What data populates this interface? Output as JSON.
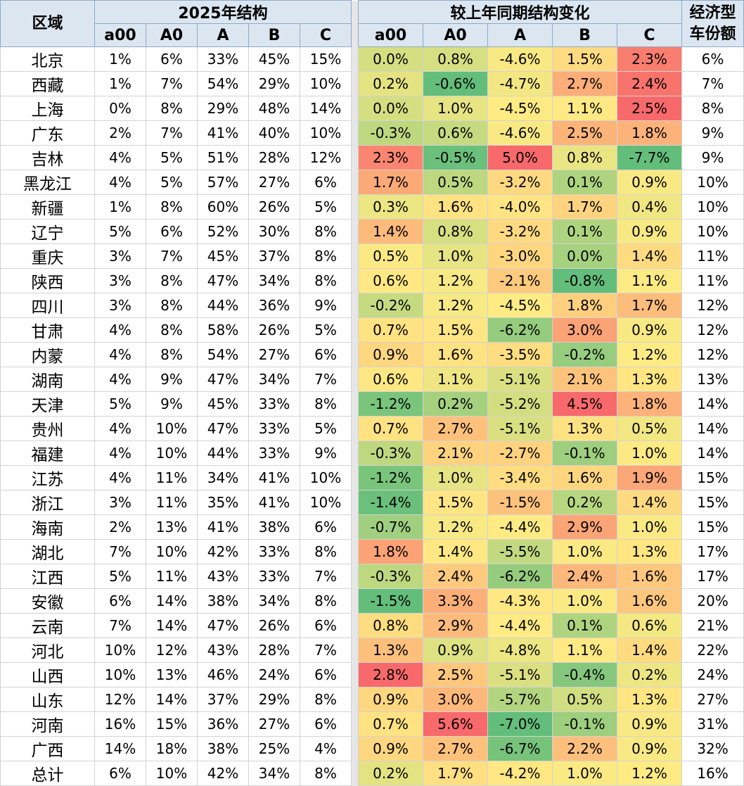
{
  "headers": {
    "region": "区域",
    "structure_group": "2025年结构",
    "change_group": "较上年同期结构变化",
    "economy_line1": "经济型",
    "economy_line2": "车份额",
    "segments": [
      "a00",
      "A0",
      "A",
      "B",
      "C"
    ]
  },
  "rows": [
    {
      "region": "北京",
      "structure": [
        "1%",
        "6%",
        "33%",
        "45%",
        "15%"
      ],
      "change": [
        "0.0%",
        "0.8%",
        "-4.6%",
        "1.5%",
        "2.3%"
      ],
      "economy": "6%"
    },
    {
      "region": "西藏",
      "structure": [
        "1%",
        "7%",
        "54%",
        "29%",
        "10%"
      ],
      "change": [
        "0.2%",
        "-0.6%",
        "-4.7%",
        "2.7%",
        "2.4%"
      ],
      "economy": "7%"
    },
    {
      "region": "上海",
      "structure": [
        "0%",
        "8%",
        "29%",
        "48%",
        "14%"
      ],
      "change": [
        "0.0%",
        "1.0%",
        "-4.5%",
        "1.1%",
        "2.5%"
      ],
      "economy": "8%"
    },
    {
      "region": "广东",
      "structure": [
        "2%",
        "7%",
        "41%",
        "40%",
        "10%"
      ],
      "change": [
        "-0.3%",
        "0.6%",
        "-4.6%",
        "2.5%",
        "1.8%"
      ],
      "economy": "9%"
    },
    {
      "region": "吉林",
      "structure": [
        "4%",
        "5%",
        "51%",
        "28%",
        "12%"
      ],
      "change": [
        "2.3%",
        "-0.5%",
        "5.0%",
        "0.8%",
        "-7.7%"
      ],
      "economy": "9%"
    },
    {
      "region": "黑龙江",
      "structure": [
        "4%",
        "5%",
        "57%",
        "27%",
        "6%"
      ],
      "change": [
        "1.7%",
        "0.5%",
        "-3.2%",
        "0.1%",
        "0.9%"
      ],
      "economy": "10%"
    },
    {
      "region": "新疆",
      "structure": [
        "1%",
        "8%",
        "60%",
        "26%",
        "5%"
      ],
      "change": [
        "0.3%",
        "1.6%",
        "-4.0%",
        "1.7%",
        "0.4%"
      ],
      "economy": "10%"
    },
    {
      "region": "辽宁",
      "structure": [
        "5%",
        "6%",
        "52%",
        "30%",
        "8%"
      ],
      "change": [
        "1.4%",
        "0.8%",
        "-3.2%",
        "0.1%",
        "0.9%"
      ],
      "economy": "10%"
    },
    {
      "region": "重庆",
      "structure": [
        "3%",
        "7%",
        "45%",
        "37%",
        "8%"
      ],
      "change": [
        "0.5%",
        "1.0%",
        "-3.0%",
        "0.0%",
        "1.4%"
      ],
      "economy": "11%"
    },
    {
      "region": "陕西",
      "structure": [
        "3%",
        "8%",
        "47%",
        "34%",
        "8%"
      ],
      "change": [
        "0.6%",
        "1.2%",
        "-2.1%",
        "-0.8%",
        "1.1%"
      ],
      "economy": "11%"
    },
    {
      "region": "四川",
      "structure": [
        "3%",
        "8%",
        "44%",
        "36%",
        "9%"
      ],
      "change": [
        "-0.2%",
        "1.2%",
        "-4.5%",
        "1.8%",
        "1.7%"
      ],
      "economy": "12%"
    },
    {
      "region": "甘肃",
      "structure": [
        "4%",
        "8%",
        "58%",
        "26%",
        "5%"
      ],
      "change": [
        "0.7%",
        "1.5%",
        "-6.2%",
        "3.0%",
        "0.9%"
      ],
      "economy": "12%"
    },
    {
      "region": "内蒙",
      "structure": [
        "4%",
        "8%",
        "54%",
        "27%",
        "6%"
      ],
      "change": [
        "0.9%",
        "1.6%",
        "-3.5%",
        "-0.2%",
        "1.2%"
      ],
      "economy": "12%"
    },
    {
      "region": "湖南",
      "structure": [
        "4%",
        "9%",
        "47%",
        "34%",
        "7%"
      ],
      "change": [
        "0.6%",
        "1.1%",
        "-5.1%",
        "2.1%",
        "1.3%"
      ],
      "economy": "13%"
    },
    {
      "region": "天津",
      "structure": [
        "5%",
        "9%",
        "45%",
        "33%",
        "8%"
      ],
      "change": [
        "-1.2%",
        "0.2%",
        "-5.2%",
        "4.5%",
        "1.8%"
      ],
      "economy": "14%"
    },
    {
      "region": "贵州",
      "structure": [
        "4%",
        "10%",
        "47%",
        "33%",
        "5%"
      ],
      "change": [
        "0.7%",
        "2.7%",
        "-5.1%",
        "1.3%",
        "0.5%"
      ],
      "economy": "14%"
    },
    {
      "region": "福建",
      "structure": [
        "4%",
        "10%",
        "44%",
        "33%",
        "9%"
      ],
      "change": [
        "-0.3%",
        "2.1%",
        "-2.7%",
        "-0.1%",
        "1.0%"
      ],
      "economy": "14%"
    },
    {
      "region": "江苏",
      "structure": [
        "4%",
        "11%",
        "34%",
        "41%",
        "10%"
      ],
      "change": [
        "-1.2%",
        "1.0%",
        "-3.4%",
        "1.6%",
        "1.9%"
      ],
      "economy": "15%"
    },
    {
      "region": "浙江",
      "structure": [
        "3%",
        "11%",
        "35%",
        "41%",
        "10%"
      ],
      "change": [
        "-1.4%",
        "1.5%",
        "-1.5%",
        "0.2%",
        "1.4%"
      ],
      "economy": "15%"
    },
    {
      "region": "海南",
      "structure": [
        "2%",
        "13%",
        "41%",
        "38%",
        "6%"
      ],
      "change": [
        "-0.7%",
        "1.2%",
        "-4.4%",
        "2.9%",
        "1.0%"
      ],
      "economy": "15%"
    },
    {
      "region": "湖北",
      "structure": [
        "7%",
        "10%",
        "42%",
        "33%",
        "8%"
      ],
      "change": [
        "1.8%",
        "1.4%",
        "-5.5%",
        "1.0%",
        "1.3%"
      ],
      "economy": "17%"
    },
    {
      "region": "江西",
      "structure": [
        "5%",
        "11%",
        "43%",
        "33%",
        "7%"
      ],
      "change": [
        "-0.3%",
        "2.4%",
        "-6.2%",
        "2.4%",
        "1.6%"
      ],
      "economy": "17%"
    },
    {
      "region": "安徽",
      "structure": [
        "6%",
        "14%",
        "38%",
        "34%",
        "8%"
      ],
      "change": [
        "-1.5%",
        "3.3%",
        "-4.3%",
        "1.0%",
        "1.6%"
      ],
      "economy": "20%"
    },
    {
      "region": "云南",
      "structure": [
        "7%",
        "14%",
        "47%",
        "26%",
        "6%"
      ],
      "change": [
        "0.8%",
        "2.9%",
        "-4.4%",
        "0.1%",
        "0.6%"
      ],
      "economy": "21%"
    },
    {
      "region": "河北",
      "structure": [
        "10%",
        "12%",
        "43%",
        "28%",
        "7%"
      ],
      "change": [
        "1.3%",
        "0.9%",
        "-4.8%",
        "1.1%",
        "1.4%"
      ],
      "economy": "22%"
    },
    {
      "region": "山西",
      "structure": [
        "10%",
        "13%",
        "46%",
        "24%",
        "6%"
      ],
      "change": [
        "2.8%",
        "2.5%",
        "-5.1%",
        "-0.4%",
        "0.2%"
      ],
      "economy": "24%"
    },
    {
      "region": "山东",
      "structure": [
        "12%",
        "14%",
        "37%",
        "29%",
        "8%"
      ],
      "change": [
        "0.9%",
        "3.0%",
        "-5.7%",
        "0.5%",
        "1.3%"
      ],
      "economy": "27%"
    },
    {
      "region": "河南",
      "structure": [
        "16%",
        "15%",
        "36%",
        "27%",
        "6%"
      ],
      "change": [
        "0.7%",
        "5.6%",
        "-7.0%",
        "-0.1%",
        "0.9%"
      ],
      "economy": "31%"
    },
    {
      "region": "广西",
      "structure": [
        "14%",
        "18%",
        "38%",
        "25%",
        "4%"
      ],
      "change": [
        "0.9%",
        "2.7%",
        "-6.7%",
        "2.2%",
        "0.9%"
      ],
      "economy": "32%"
    },
    {
      "region": "总计",
      "structure": [
        "6%",
        "10%",
        "42%",
        "34%",
        "8%"
      ],
      "change": [
        "0.2%",
        "1.7%",
        "-4.2%",
        "1.0%",
        "1.2%"
      ],
      "economy": "16%"
    }
  ],
  "heatmap_colors": {
    "negative_extreme": "#63be7b",
    "mid": "#ffeb84",
    "positive_extreme": "#f8696b"
  }
}
